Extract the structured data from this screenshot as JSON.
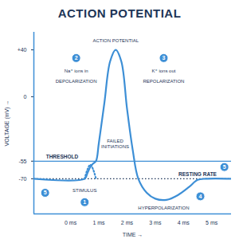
{
  "chart_data": {
    "type": "line",
    "title": "ACTION POTENTIAL",
    "x_label": "TIME",
    "y_label": "VOLTAGE (mV)",
    "x": [
      -1.3,
      0.5,
      0.6,
      0.7,
      0.8,
      0.9,
      1.0,
      1.2,
      1.4,
      1.6,
      1.8,
      2.0,
      2.2,
      2.4,
      2.7,
      3.0,
      3.4,
      3.8,
      4.2,
      4.5,
      4.8,
      5.7
    ],
    "series": [
      {
        "color": "#3d8fd6",
        "line_style": "solid",
        "values": [
          -70,
          -70,
          -65,
          -60,
          -57,
          -55,
          -40,
          -5,
          30,
          40,
          30,
          -10,
          -45,
          -70,
          -82,
          -87,
          -88,
          -84,
          -77,
          -71,
          -70,
          -70
        ]
      },
      {
        "color": "#3d8fd6",
        "line_style": "dotted",
        "values": [
          null,
          -70,
          -62,
          -58,
          -62,
          -70,
          null,
          null,
          null,
          null,
          null,
          null,
          null,
          null,
          null,
          null,
          null,
          null,
          null,
          null,
          null,
          null
        ]
      }
    ],
    "xlim": [
      -1.3,
      5.7
    ],
    "ylim": [
      -100,
      55
    ],
    "xticks": [
      {
        "value": 0,
        "label": "0 ms"
      },
      {
        "value": 1,
        "label": "1 ms"
      },
      {
        "value": 2,
        "label": "2 ms"
      },
      {
        "value": 3,
        "label": "3 ms"
      },
      {
        "value": 4,
        "label": "4 ms"
      },
      {
        "value": 5,
        "label": "5 ms"
      }
    ],
    "yticks": [
      {
        "value": 40,
        "label": "+40"
      },
      0,
      -55,
      -70
    ],
    "grid": false,
    "reference_lines": [
      {
        "y": -55,
        "text": "THRESHOLD",
        "x": -0.3,
        "line_style": "solid"
      },
      {
        "y": -70,
        "text": "RESTING RATE",
        "x": 4.5,
        "line_style": "dotted"
      }
    ],
    "annotations": [
      {
        "text": "ACTION POTENTIAL",
        "x": 1.6,
        "y": 48,
        "bold": true
      },
      {
        "text": "Na⁺ ions in",
        "x": 0.2,
        "y": 22
      },
      {
        "text": "DEPOLARIZATION",
        "x": 0.2,
        "y": 13,
        "bold": true
      },
      {
        "text": "K⁺ ions out",
        "x": 3.3,
        "y": 22
      },
      {
        "text": "REPOLARIZATION",
        "x": 3.3,
        "y": 13,
        "bold": true
      },
      {
        "text": "FAILED\nINITIATIONS",
        "x": 1.58,
        "y": -40
      },
      {
        "text": "STIMULUS",
        "x": 0.5,
        "y": -80,
        "bold": true
      },
      {
        "text": "HYPERPOLARIZATION",
        "x": 3.3,
        "y": -95,
        "bold": true
      }
    ],
    "markers": [
      {
        "label": "1",
        "x": 0.5,
        "y": -90
      },
      {
        "label": "2",
        "x": 0.2,
        "y": 33
      },
      {
        "label": "3",
        "x": 3.3,
        "y": 33
      },
      {
        "label": "4",
        "x": 4.6,
        "y": -85
      },
      {
        "label": "5",
        "x": 5.45,
        "y": -60
      },
      {
        "label": "5",
        "x": -0.9,
        "y": -82
      }
    ]
  }
}
